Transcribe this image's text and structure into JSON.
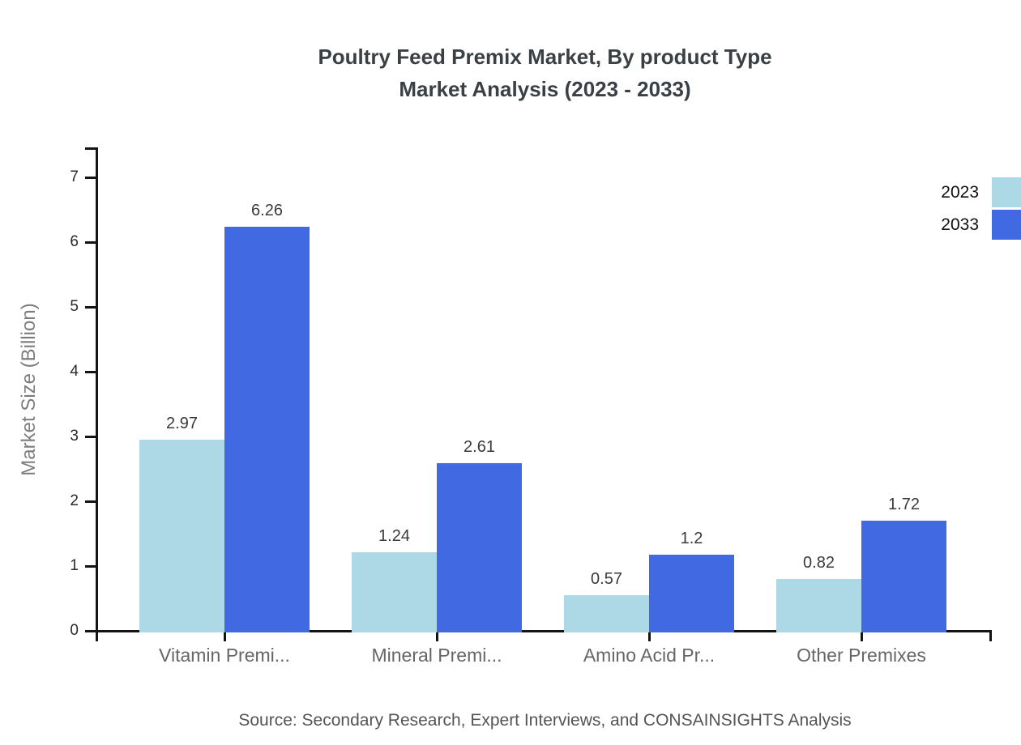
{
  "title": {
    "line1": "Poultry Feed Premix Market, By product Type",
    "line2": "Market Analysis (2023 - 2033)"
  },
  "chart_data": {
    "type": "bar",
    "categories": [
      "Vitamin Premi...",
      "Mineral Premi...",
      "Amino Acid Pr...",
      "Other Premixes"
    ],
    "series": [
      {
        "name": "2023",
        "color": "#ADD8E6",
        "values": [
          2.97,
          1.24,
          0.57,
          0.82
        ],
        "value_labels": [
          "2.97",
          "1.24",
          "0.57",
          "0.82"
        ]
      },
      {
        "name": "2033",
        "color": "#4169E1",
        "values": [
          6.26,
          2.61,
          1.2,
          1.72
        ],
        "value_labels": [
          "6.26",
          "2.61",
          "1.2",
          "1.72"
        ]
      }
    ],
    "xlabel": "",
    "ylabel": "Market Size (Billion)",
    "y_ticks": [
      0,
      1,
      2,
      3,
      4,
      5,
      6,
      7
    ],
    "ylim": [
      0,
      7.5
    ],
    "grid": false,
    "legend_position": "top-right",
    "axis_color": "#141414"
  },
  "source": "Source: Secondary Research, Expert Interviews, and CONSAINSIGHTS Analysis"
}
